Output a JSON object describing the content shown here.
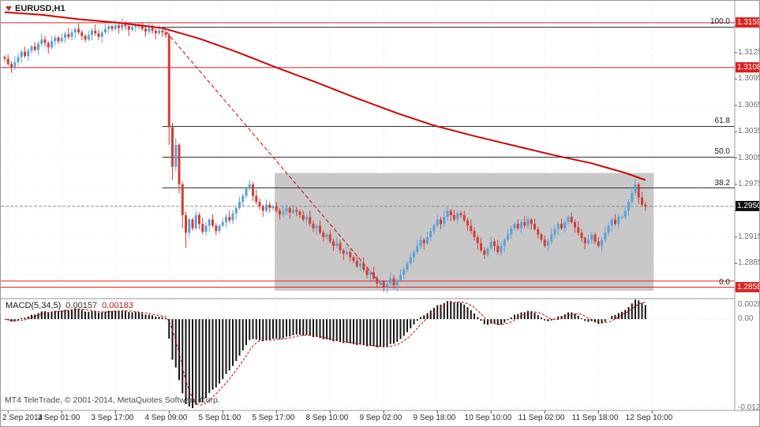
{
  "window": {
    "symbol_label": "EURUSD,H1"
  },
  "footer": {
    "copyright": "MT4 TeleTrade, © 2001-2014, MetaQuotes Software Corp."
  },
  "colors": {
    "bull": "#5ba0d9",
    "bear": "#d43d34",
    "ma": "#d40000",
    "signal": "#d40000",
    "histogram": "#151515",
    "fib_line": "#333333",
    "rect": "#c8c8c8",
    "red_level": "#dd2222",
    "badge_red": "#dd2222",
    "badge_dark": "#101010",
    "grid_v": "#e5e5e5",
    "grid_h": "#f0f0f0",
    "separator": "#9b9b9b",
    "current_price_line": "#8a8a8a"
  },
  "chart_data": {
    "type": "candlestick",
    "symbol": "EURUSD",
    "timeframe": "H1",
    "ylim": [
      1.2845,
      1.3184
    ],
    "price_ticks": [
      1.3155,
      1.3125,
      1.3095,
      1.3065,
      1.3035,
      1.3005,
      1.2975,
      1.2945,
      1.2915,
      1.2885,
      1.2855
    ],
    "time_ticks": [
      {
        "i": 1,
        "label": "2 Sep 2014"
      },
      {
        "i": 17,
        "label": "3 Sep 01:00"
      },
      {
        "i": 33,
        "label": "3 Sep 17:00"
      },
      {
        "i": 49,
        "label": "4 Sep 09:00"
      },
      {
        "i": 65,
        "label": "5 Sep 01:00"
      },
      {
        "i": 81,
        "label": "5 Sep 17:00"
      },
      {
        "i": 97,
        "label": "8 Sep 10:00"
      },
      {
        "i": 113,
        "label": "9 Sep 02:00"
      },
      {
        "i": 129,
        "label": "9 Sep 18:00"
      },
      {
        "i": 145,
        "label": "10 Sep 10:00"
      },
      {
        "i": 161,
        "label": "11 Sep 02:00"
      },
      {
        "i": 177,
        "label": "11 Sep 18:00"
      },
      {
        "i": 193,
        "label": "12 Sep 10:00"
      }
    ],
    "candles": {
      "open0": 1.312,
      "closes": [
        1.3118,
        1.3112,
        1.3108,
        1.3114,
        1.312,
        1.3126,
        1.3121,
        1.3127,
        1.3132,
        1.3128,
        1.3135,
        1.314,
        1.3136,
        1.3131,
        1.3138,
        1.3142,
        1.3138,
        1.3142,
        1.3146,
        1.3143,
        1.3148,
        1.3152,
        1.3148,
        1.3144,
        1.314,
        1.3145,
        1.315,
        1.3147,
        1.3143,
        1.3148,
        1.3152,
        1.3155,
        1.3152,
        1.3156,
        1.3153,
        1.3157,
        1.3155,
        1.3151,
        1.3154,
        1.3157,
        1.3155,
        1.3152,
        1.3149,
        1.3153,
        1.315,
        1.3147,
        1.315,
        1.3148,
        1.3145,
        1.304,
        1.2995,
        1.302,
        1.2975,
        1.294,
        1.292,
        1.2935,
        1.2925,
        1.294,
        1.293,
        1.2921,
        1.2928,
        1.2935,
        1.2928,
        1.2922,
        1.2928,
        1.2932,
        1.2938,
        1.2934,
        1.2942,
        1.2948,
        1.2955,
        1.2962,
        1.297,
        1.2975,
        1.2962,
        1.2955,
        1.295,
        1.2945,
        1.2952,
        1.2948,
        1.295,
        1.2945,
        1.2941,
        1.2944,
        1.2948,
        1.2943,
        1.2946,
        1.2944,
        1.294,
        1.2935,
        1.2938,
        1.293,
        1.2925,
        1.2928,
        1.292,
        1.2915,
        1.2918,
        1.291,
        1.2905,
        1.2908,
        1.29,
        1.2896,
        1.2898,
        1.2892,
        1.2888,
        1.2882,
        1.2885,
        1.2878,
        1.2872,
        1.2875,
        1.2868,
        1.2862,
        1.2865,
        1.2858,
        1.2862,
        1.2868,
        1.286,
        1.2866,
        1.2872,
        1.2878,
        1.2885,
        1.2892,
        1.2898,
        1.2905,
        1.2912,
        1.2908,
        1.2915,
        1.2922,
        1.2928,
        1.2935,
        1.293,
        1.2938,
        1.2945,
        1.294,
        1.2935,
        1.2942,
        1.294,
        1.2934,
        1.2928,
        1.2922,
        1.2915,
        1.2908,
        1.29,
        1.2895,
        1.2902,
        1.291,
        1.2905,
        1.2898,
        1.2905,
        1.2912,
        1.2918,
        1.2925,
        1.293,
        1.2925,
        1.2932,
        1.2928,
        1.2935,
        1.293,
        1.2924,
        1.2918,
        1.2912,
        1.2905,
        1.291,
        1.2918,
        1.2924,
        1.293,
        1.2925,
        1.2932,
        1.2938,
        1.2932,
        1.2926,
        1.292,
        1.2914,
        1.2908,
        1.2912,
        1.2918,
        1.291,
        1.2905,
        1.2912,
        1.292,
        1.2928,
        1.2935,
        1.293,
        1.2938,
        1.2938,
        1.2945,
        1.2955,
        1.2965,
        1.2975,
        1.296,
        1.2952,
        1.295
      ],
      "wick_cycle": [
        [
          2,
          3
        ],
        [
          5,
          2
        ],
        [
          3,
          6
        ],
        [
          7,
          3
        ],
        [
          4,
          4
        ],
        [
          2,
          7
        ],
        [
          6,
          2
        ],
        [
          3,
          5
        ]
      ],
      "overrides": {
        "49": [
          1.3147,
          1.302
        ],
        "50": [
          1.3045,
          1.298
        ],
        "51": [
          1.3028,
          1.299
        ],
        "52": [
          1.3022,
          1.2965
        ],
        "53": [
          1.2978,
          1.2925
        ],
        "54": [
          1.2944,
          1.2903
        ],
        "113": [
          1.2866,
          1.2853
        ],
        "188": [
          1.2981,
          1.2962
        ]
      }
    },
    "ma_line": [
      [
        0,
        1.3171
      ],
      [
        11,
        1.3168
      ],
      [
        22,
        1.3163
      ],
      [
        34,
        1.3159
      ],
      [
        47,
        1.3153
      ],
      [
        58,
        1.3141
      ],
      [
        69,
        1.3126
      ],
      [
        81,
        1.3108
      ],
      [
        93,
        1.3091
      ],
      [
        105,
        1.3073
      ],
      [
        117,
        1.3056
      ],
      [
        128,
        1.3042
      ],
      [
        140,
        1.303
      ],
      [
        152,
        1.3019
      ],
      [
        164,
        1.3008
      ],
      [
        175,
        1.2999
      ],
      [
        185,
        1.2988
      ],
      [
        191,
        1.298
      ]
    ],
    "fibonacci": {
      "anchor_start": [
        47,
        1.3154
      ],
      "anchor_end": [
        113,
        1.2858
      ],
      "levels": [
        {
          "label": "100.0",
          "price": 1.3154
        },
        {
          "label": "61.8",
          "price": 1.3041
        },
        {
          "label": "50.0",
          "price": 1.3006
        },
        {
          "label": "38.2",
          "price": 1.2971
        },
        {
          "label": "0.0",
          "price": 1.2858
        }
      ]
    },
    "red_lines": [
      1.3159,
      1.3108,
      1.2865,
      1.2858
    ],
    "current_price": 1.295,
    "price_badges": [
      {
        "price": 1.3159,
        "color": "red"
      },
      {
        "price": 1.3108,
        "color": "red"
      },
      {
        "price": 1.295,
        "color": "black"
      },
      {
        "price": 1.2858,
        "color": "red"
      }
    ],
    "rectangle": {
      "i0": 80.5,
      "i1": 193.5,
      "p_top": 1.2988,
      "p_bottom": 1.2854
    },
    "macd": {
      "name": "MACD(5,34,5)",
      "value_main": "0.00157",
      "value_signal": "0.00183",
      "fast": 5,
      "slow": 34,
      "signal_period": 5,
      "axis": [
        {
          "v": 0.0028,
          "label": "0.0028"
        },
        {
          "v": 0,
          "label": "0.00"
        },
        {
          "v": -0.0126,
          "label": "-0.0126"
        }
      ]
    }
  }
}
